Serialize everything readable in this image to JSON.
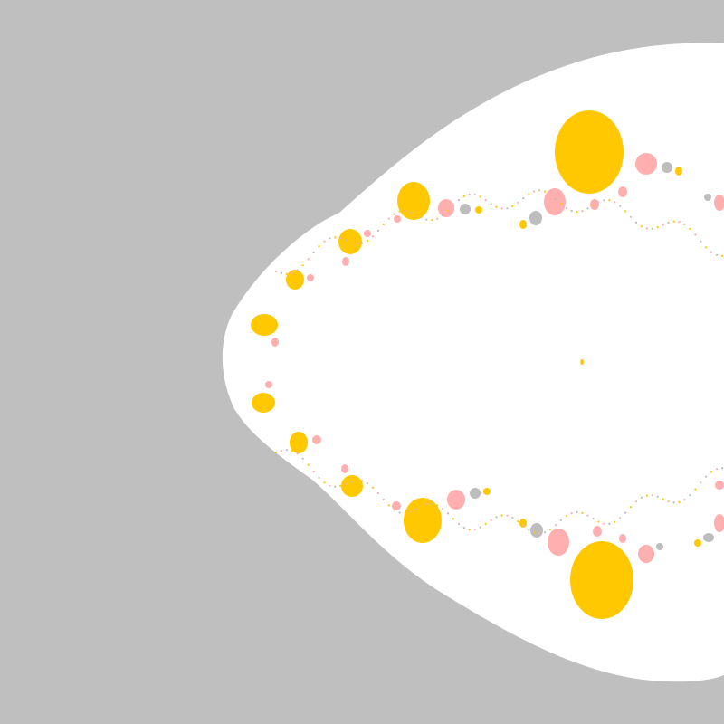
{
  "colors": {
    "background": "#bfbfbf",
    "interior": "#ffffff",
    "bulb_primary": "#ffc800",
    "bulb_secondary": "#ffafaf",
    "bulb_tertiary": "#bdbdbd"
  },
  "scene": {
    "subject": "fractal-set-render",
    "palette_names": [
      "gold",
      "pink",
      "grey"
    ]
  }
}
